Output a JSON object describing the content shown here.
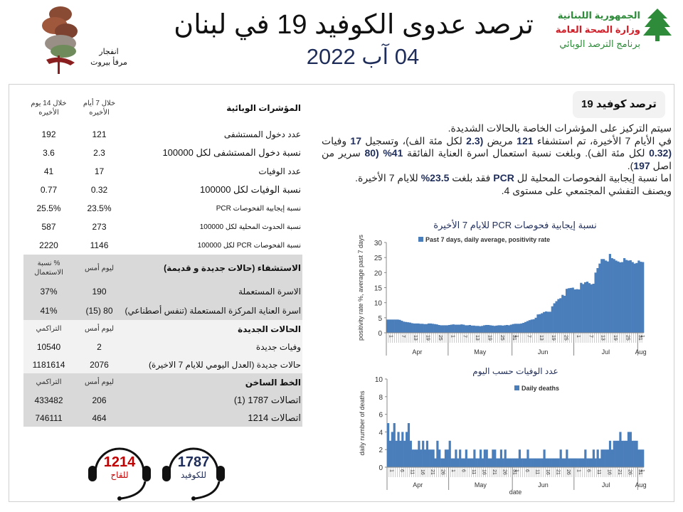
{
  "header": {
    "title": "ترصد عدوى الكوفيد 19 في لبنان",
    "date": "04 آب 2022",
    "blast_caption_1": "انفجار",
    "blast_caption_2": "مرفأ بيروت",
    "ministry_1": "الجمهورية اللبنانية",
    "ministry_2": "وزارة الصحة العامة",
    "ministry_3": "برنامج الترصد الوبائي"
  },
  "table": {
    "indicators": {
      "header": "المؤشرات الوبائية",
      "col1": "خلال 7 أيام الأخيره",
      "col2": "خلال 14 يوم الأخيره",
      "rows": [
        {
          "label": "عدد دخول المستشفى",
          "v7": "121",
          "v14": "192"
        },
        {
          "label": "نسبة دخول المستشفى لكل 100000",
          "v7": "2.3",
          "v14": "3.6"
        },
        {
          "label": "عدد الوفيات",
          "v7": "17",
          "v14": "41"
        },
        {
          "label": "نسبة الوفيات لكل 100000",
          "v7": "0.32",
          "v14": "0.77"
        },
        {
          "label": "نسبة إيجابية الفحوصات PCR",
          "v7": "23.5%",
          "v14": "25.5%"
        },
        {
          "label": "نسبة الحدوث المحلية لكل 100000",
          "v7": "273",
          "v14": "587"
        },
        {
          "label": "نسبة الفحوصات  PCR لكل 100000",
          "v7": "1146",
          "v14": "2220"
        }
      ]
    },
    "hospital": {
      "header": "الاستشفاء (حالات جديدة و قديمة)",
      "col1": "ليوم أمس",
      "col2": "% نسبة الاستعمال",
      "rows": [
        {
          "label": "الاسرة المستعملة",
          "v1": "190",
          "v2": "37%"
        },
        {
          "label": "اسرة العناية المركزة المستعملة (تنفس أصطناعي)",
          "v1": "80 (15)",
          "v2": "41%"
        }
      ]
    },
    "new_cases": {
      "header": "الحالات الجديدة",
      "col1": "ليوم أمس",
      "col2": "التراكمي",
      "rows": [
        {
          "label": "وفيات جديدة",
          "v1": "2",
          "v2": "10540"
        },
        {
          "label": "حالات جديدة (العدل اليومي للايام 7 الاخيرة)",
          "v1": "2076",
          "v2": "1181614"
        }
      ]
    },
    "hotline": {
      "header": "الخط الساخن",
      "col1": "ليوم أمس",
      "col2": "التراكمي",
      "rows": [
        {
          "label": "اتصالات 1787 (1)",
          "v1": "206",
          "v2": "433482"
        },
        {
          "label": "اتصالات 1214",
          "v1": "464",
          "v2": "746111"
        }
      ]
    }
  },
  "hotlines": [
    {
      "number": "1787",
      "label": "للكوفيد",
      "color": "#1f2d5a"
    },
    {
      "number": "1214",
      "label": "للقاح",
      "color": "#c00000"
    }
  ],
  "summary": {
    "title": "ترصد كوفيد 19",
    "paragraphs": [
      [
        {
          "t": "سيتم التركيز على المؤشرات الخاصة بالحالات الشديدة."
        }
      ],
      [
        {
          "t": "في الأيام 7 الأخيرة، تم استشفاء "
        },
        {
          "t": "121",
          "b": true
        },
        {
          "t": " مريض "
        },
        {
          "t": "(2.3",
          "b": true
        },
        {
          "t": " لكل مئة الف)، وتسجيل "
        },
        {
          "t": "17",
          "b": true
        },
        {
          "t": " وفيات "
        },
        {
          "t": "(0.32",
          "b": true
        },
        {
          "t": " لكل مئة الف). وبلغت نسبة استعمال اسرة العناية الفائقة "
        },
        {
          "t": "41%",
          "b": true
        },
        {
          "t": " "
        },
        {
          "t": "(80",
          "b": true
        },
        {
          "t": " سرير من اصل "
        },
        {
          "t": "197",
          "b": true
        },
        {
          "t": ")."
        }
      ],
      [
        {
          "t": "اما نسبة إيجابية الفحوصات المحلية لل "
        },
        {
          "t": "PCR",
          "b": true
        },
        {
          "t": " فقد بلغت "
        },
        {
          "t": "23.5%",
          "b": true
        },
        {
          "t": " للايام 7 الأخيرة."
        }
      ],
      [
        {
          "t": "ويصنف التفشي المجتمعي على مستوى 4."
        }
      ]
    ]
  },
  "chart_data": [
    {
      "type": "bar",
      "title": "نسبة إيجابية فحوصات PCR للايام 7 الأخيرة",
      "legend": "Past 7 days, daily average, positivity rate",
      "legend_position": "top",
      "ylabel": "positivity rate %, average past 7 days",
      "xlabel": "",
      "ylim": [
        0,
        30
      ],
      "yticks": [
        0,
        5,
        10,
        15,
        20,
        25,
        30
      ],
      "start_date": "Apr 1",
      "months": [
        "Apr",
        "May",
        "Jun",
        "Jul",
        "Aug"
      ],
      "month_lengths": [
        30,
        31,
        30,
        31,
        3
      ],
      "day_tick_step": 6,
      "color": "#4a7ebb",
      "values": [
        4.4,
        4.4,
        4.4,
        4.4,
        4.4,
        4.4,
        4.3,
        4.0,
        3.7,
        3.6,
        3.5,
        3.4,
        3.2,
        3.1,
        3.1,
        3.1,
        3.0,
        3.0,
        2.9,
        2.9,
        3.1,
        3.1,
        3.0,
        2.9,
        2.8,
        2.6,
        2.5,
        2.5,
        2.5,
        2.5,
        2.6,
        2.7,
        2.8,
        2.7,
        2.7,
        2.7,
        2.8,
        2.7,
        2.5,
        2.5,
        2.6,
        2.4,
        2.4,
        2.3,
        2.3,
        2.2,
        2.3,
        2.5,
        2.6,
        2.6,
        2.5,
        2.4,
        2.3,
        2.4,
        2.5,
        2.5,
        2.4,
        2.5,
        2.6,
        2.5,
        2.7,
        2.9,
        3.0,
        3.0,
        3.0,
        3.1,
        3.3,
        3.6,
        3.9,
        4.2,
        4.4,
        4.5,
        5.0,
        6.1,
        6.2,
        6.5,
        6.9,
        7.1,
        7.0,
        7.0,
        8.8,
        9.8,
        10.5,
        11.2,
        11.5,
        12.6,
        12.3,
        14.6,
        14.8,
        14.9,
        15.0,
        14.4,
        14.5,
        14.4,
        16.6,
        16.2,
        16.8,
        17.0,
        16.5,
        16.1,
        16.3,
        20.0,
        21.5,
        23.0,
        24.5,
        24.5,
        24.0,
        23.7,
        26.2,
        24.8,
        24.5,
        24.0,
        23.7,
        23.4,
        23.5,
        24.8,
        24.2,
        24.0,
        24.1,
        23.5,
        23.0,
        23.2,
        24.0,
        23.6,
        23.5
      ]
    },
    {
      "type": "bar",
      "title": "عدد الوفيات حسب اليوم",
      "legend": "Daily deaths",
      "legend_position": "top-right",
      "ylabel": "daily number of deaths",
      "xlabel": "date",
      "ylim": [
        0,
        10
      ],
      "yticks": [
        0,
        2,
        4,
        6,
        8,
        10
      ],
      "start_date": "Apr 1",
      "months": [
        "Apr",
        "May",
        "Jun",
        "Jul",
        "Aug"
      ],
      "month_lengths": [
        30,
        31,
        30,
        31,
        3
      ],
      "day_tick_step": 5,
      "color": "#4a7ebb",
      "values": [
        5,
        3,
        4,
        5,
        3,
        4,
        3,
        4,
        3,
        4,
        5,
        3,
        2,
        2,
        2,
        3,
        2,
        3,
        2,
        3,
        2,
        2,
        2,
        1,
        3,
        2,
        1,
        1,
        2,
        2,
        3,
        1,
        1,
        2,
        1,
        2,
        1,
        1,
        2,
        1,
        1,
        1,
        2,
        1,
        1,
        2,
        1,
        2,
        2,
        1,
        1,
        2,
        2,
        1,
        1,
        2,
        1,
        2,
        1,
        1,
        1,
        1,
        1,
        1,
        2,
        1,
        1,
        1,
        2,
        1,
        1,
        1,
        1,
        1,
        1,
        1,
        2,
        1,
        1,
        1,
        1,
        1,
        1,
        1,
        2,
        1,
        1,
        2,
        1,
        1,
        1,
        1,
        1,
        1,
        1,
        1,
        2,
        1,
        1,
        1,
        2,
        1,
        2,
        1,
        2,
        2,
        2,
        2,
        3,
        2,
        3,
        3,
        3,
        4,
        3,
        3,
        3,
        4,
        4,
        3,
        3,
        3,
        2,
        2,
        2
      ]
    }
  ]
}
